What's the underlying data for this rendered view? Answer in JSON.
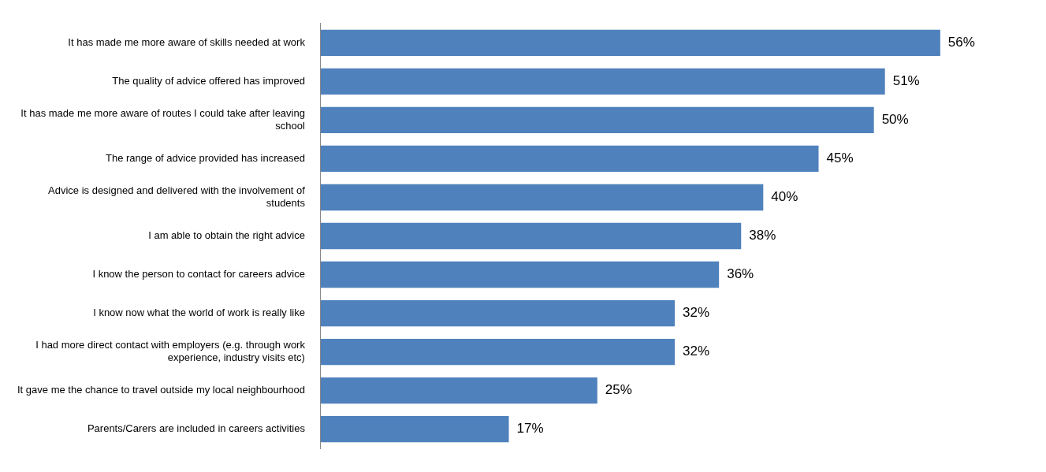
{
  "chart_data": {
    "type": "bar",
    "orientation": "horizontal",
    "categories": [
      "It has made me more aware of skills needed at work",
      "The quality of advice offered has improved",
      "It has made me more aware of routes I could take after leaving school",
      "The range of advice provided has increased",
      "Advice is designed and delivered with the involvement of students",
      "I am able to obtain the right advice",
      "I know the person to contact for careers advice",
      "I know now what the world of work is really like",
      "I had more direct contact with employers (e.g. through work experience, industry visits etc)",
      "It gave me the chance to travel outside my local neighbourhood",
      "Parents/Carers are included in careers activities"
    ],
    "values": [
      56,
      51,
      50,
      45,
      40,
      38,
      36,
      32,
      32,
      25,
      17
    ],
    "value_labels": [
      "56%",
      "51%",
      "50%",
      "45%",
      "40%",
      "38%",
      "36%",
      "32%",
      "32%",
      "25%",
      "17%"
    ],
    "color": "#4f81bd",
    "grid": false,
    "legend": false,
    "tick_labels": "y"
  }
}
